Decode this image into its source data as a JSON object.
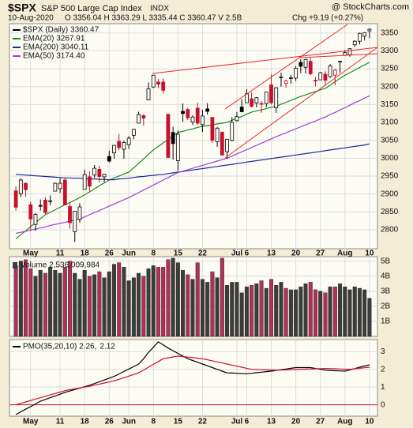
{
  "header": {
    "symbol": "$SPX",
    "name": "S&P 500 Large Cap Index",
    "exchange": "INDX",
    "credit": "@ StockCharts.com",
    "date": "10-Aug-2020",
    "quote": "O 3356.04 H 3363.29 L 3335.44 C 3360.47 V 2.5B",
    "change": "Chg +9.19 (+0.27%)"
  },
  "chart_data": [
    {
      "type": "candlestick",
      "name": "$SPX (Daily) 3360.47",
      "up_color": "#000000",
      "down_color": "#c8102e",
      "grid": true,
      "categories": [
        null,
        null,
        null,
        "May",
        null,
        null,
        null,
        null,
        null,
        "11",
        null,
        null,
        null,
        null,
        "18",
        null,
        null,
        null,
        null,
        "26",
        null,
        null,
        null,
        "Jun",
        null,
        null,
        null,
        null,
        "8",
        null,
        null,
        null,
        null,
        "15",
        null,
        null,
        null,
        null,
        "22",
        null,
        null,
        null,
        null,
        null,
        null,
        "Jul",
        null,
        "6",
        null,
        null,
        null,
        null,
        "13",
        null,
        null,
        null,
        null,
        "20",
        null,
        null,
        null,
        null,
        "27",
        null,
        null,
        null,
        null,
        "Aug",
        null,
        null,
        null,
        null,
        "10"
      ],
      "open": [
        2909,
        2901,
        2930,
        2870,
        2815,
        2868,
        2883,
        2879,
        2908,
        2915,
        2939,
        2865,
        2795,
        2829,
        2913,
        2948,
        2953,
        2969,
        2948,
        3005,
        3015,
        3047,
        3025,
        3038,
        3064,
        3098,
        3119,
        3163,
        3199,
        3213,
        3213,
        3123,
        3072,
        2993,
        3131,
        3136,
        3101,
        3140,
        3094,
        3138,
        3114,
        3046,
        3073,
        3018,
        3050,
        3105,
        3143,
        3155,
        3166,
        3154,
        3153,
        3153,
        3205,
        3141,
        3225,
        3209,
        3224,
        3224,
        3268,
        3254,
        3271,
        3218,
        3219,
        3235,
        3228,
        3232,
        3270,
        3288,
        3289,
        3317,
        3327,
        3341,
        3356.04
      ],
      "high": [
        2921,
        2944,
        2932,
        2878,
        2847,
        2885,
        2891,
        2896,
        2932,
        2944,
        2945,
        2874,
        2852,
        2874,
        2968,
        2964,
        2981,
        2979,
        2956,
        3021,
        3037,
        3068,
        3049,
        3062,
        3081,
        3130,
        3123,
        3212,
        3233,
        3222,
        3223,
        3123,
        3088,
        3078,
        3153,
        3141,
        3120,
        3155,
        3135,
        3154,
        3115,
        3087,
        3073,
        3054,
        3115,
        3129,
        3165,
        3193,
        3184,
        3171,
        3160,
        3186,
        3235,
        3198,
        3239,
        3220,
        3233,
        3258,
        3277,
        3278,
        3280,
        3227,
        3241,
        3243,
        3263,
        3250,
        3272,
        3302,
        3308,
        3330,
        3351,
        3352,
        3363.29
      ],
      "low": [
        2853,
        2891,
        2892,
        2797,
        2797,
        2854,
        2844,
        2869,
        2908,
        2903,
        2870,
        2803,
        2766,
        2820,
        2913,
        2908,
        2945,
        2933,
        2933,
        2988,
        2999,
        3022,
        2999,
        3026,
        3053,
        3098,
        3091,
        3163,
        3196,
        3196,
        3181,
        3002,
        2996,
        2965,
        3102,
        3107,
        3093,
        3092,
        3073,
        3122,
        3043,
        3032,
        3007,
        2999,
        3047,
        3102,
        3128,
        3155,
        3142,
        3142,
        3127,
        3143,
        3150,
        3127,
        3200,
        3197,
        3208,
        3216,
        3238,
        3237,
        3232,
        3201,
        3219,
        3206,
        3225,
        3204,
        3238,
        3286,
        3284,
        3311,
        3318,
        3329,
        3335.44
      ],
      "close": [
        2863,
        2939,
        2912,
        2830,
        2843,
        2868,
        2848,
        2881,
        2930,
        2930,
        2870,
        2820,
        2852,
        2864,
        2954,
        2922,
        2972,
        2949,
        2955,
        2992,
        3036,
        3030,
        3044,
        3056,
        3081,
        3122,
        3112,
        3194,
        3232,
        3207,
        3190,
        3002,
        3041,
        3067,
        3125,
        3113,
        3115,
        3098,
        3118,
        3131,
        3050,
        3084,
        3009,
        3053,
        3100,
        3116,
        3130,
        3180,
        3145,
        3169,
        3152,
        3185,
        3155,
        3197,
        3227,
        3216,
        3225,
        3251,
        3257,
        3276,
        3236,
        3216,
        3239,
        3218,
        3258,
        3246,
        3271,
        3295,
        3306,
        3327,
        3349,
        3351,
        3360.47
      ],
      "series": [
        {
          "name": "EMA(20) 3267.91",
          "color": "#1a8a1a",
          "values": [
            2775,
            2786,
            2797,
            2809,
            2820,
            2831,
            2842,
            2849,
            2856,
            2863,
            2870,
            2876,
            2883,
            2890,
            2898,
            2906,
            2914,
            2923,
            2931,
            2939,
            2945,
            2950,
            2956,
            2961,
            2973,
            2986,
            2998,
            3011,
            3023,
            3033,
            3043,
            3052,
            3062,
            3072,
            3075,
            3079,
            3082,
            3086,
            3089,
            3091,
            3093,
            3096,
            3098,
            3100,
            3106,
            3112,
            3117,
            3123,
            3129,
            3132,
            3135,
            3139,
            3142,
            3145,
            3151,
            3156,
            3162,
            3167,
            3173,
            3177,
            3182,
            3186,
            3191,
            3195,
            3204,
            3214,
            3223,
            3232,
            3239,
            3246,
            3254,
            3261,
            3267.91
          ]
        },
        {
          "name": "EMA(200) 3040.11",
          "color": "#1c2a9a",
          "values": [
            2955,
            2954,
            2953,
            2952,
            2951,
            2950,
            2949,
            2948,
            2947,
            2946,
            2945,
            2945,
            2944,
            2944,
            2943,
            2942,
            2942,
            2941,
            2941,
            2940,
            2940,
            2942,
            2943,
            2944,
            2946,
            2948,
            2949,
            2951,
            2952,
            2954,
            2955,
            2957,
            2959,
            2961,
            2963,
            2965,
            2967,
            2969,
            2971,
            2973,
            2975,
            2977,
            2979,
            2981,
            2983,
            2985,
            2987,
            2989,
            2991,
            2993,
            2995,
            2997,
            2999,
            3001,
            3003,
            3005,
            3007,
            3009,
            3011,
            3013,
            3015,
            3017,
            3019,
            3021,
            3023,
            3025,
            3027,
            3029,
            3031,
            3033,
            3035,
            3037,
            3040.11
          ]
        },
        {
          "name": "EMA(50) 3174.40",
          "color": "#9b3fd6",
          "values": [
            2790,
            2793,
            2796,
            2799,
            2802,
            2805,
            2808,
            2812,
            2815,
            2818,
            2821,
            2824,
            2827,
            2830,
            2836,
            2842,
            2848,
            2854,
            2860,
            2866,
            2872,
            2878,
            2884,
            2890,
            2897,
            2904,
            2911,
            2918,
            2925,
            2932,
            2939,
            2946,
            2953,
            2960,
            2964,
            2968,
            2972,
            2976,
            2980,
            2984,
            2988,
            2992,
            2996,
            3000,
            3006,
            3012,
            3018,
            3024,
            3030,
            3036,
            3042,
            3048,
            3054,
            3060,
            3066,
            3071,
            3077,
            3082,
            3088,
            3093,
            3099,
            3104,
            3110,
            3115,
            3122,
            3128,
            3135,
            3141,
            3148,
            3155,
            3161,
            3168,
            3174.4
          ]
        }
      ],
      "ylim": [
        2747,
        3376
      ],
      "yticks": [
        2800,
        2850,
        2900,
        2950,
        3000,
        3050,
        3100,
        3150,
        3200,
        3250,
        3300,
        3350
      ]
    },
    {
      "type": "bar",
      "name": "Volume 2,536,009,984",
      "up_color": "#3c3c3c",
      "down_color": "#b0305a",
      "grid": true,
      "values": [
        4.7,
        5.0,
        5.1,
        4.5,
        4.0,
        4.4,
        4.2,
        4.6,
        4.4,
        4.2,
        4.6,
        5.0,
        4.2,
        3.8,
        4.4,
        4.0,
        4.1,
        4.3,
        3.9,
        4.3,
        4.8,
        4.9,
        4.6,
        3.7,
        3.9,
        4.2,
        4.0,
        4.5,
        4.7,
        4.6,
        4.6,
        5.1,
        5.2,
        4.9,
        4.4,
        4.1,
        3.8,
        4.9,
        3.8,
        3.6,
        4.3,
        3.9,
        5.2,
        3.4,
        3.6,
        3.6,
        2.9,
        3.3,
        3.4,
        3.5,
        3.7,
        3.2,
        3.8,
        3.4,
        3.6,
        3.2,
        3.1,
        3.1,
        3.3,
        3.5,
        3.6,
        3.1,
        3.0,
        2.9,
        3.3,
        3.3,
        3.5,
        3.3,
        3.1,
        3.3,
        3.2,
        3.1,
        2.536009984
      ],
      "ylim": [
        0,
        5.3
      ],
      "yticks": [
        {
          "value": 1,
          "label": "1B"
        },
        {
          "value": 2,
          "label": "2B"
        },
        {
          "value": 3,
          "label": "3B"
        },
        {
          "value": 4,
          "label": "4B"
        },
        {
          "value": 5,
          "label": "5B"
        }
      ]
    },
    {
      "type": "line",
      "grid": true,
      "zero_color": "#c8102e",
      "categories": [
        null,
        null,
        null,
        "May",
        null,
        null,
        null,
        null,
        null,
        "11",
        null,
        null,
        null,
        null,
        "18",
        null,
        null,
        null,
        null,
        "26",
        null,
        null,
        null,
        "Jun",
        null,
        null,
        null,
        null,
        "8",
        null,
        null,
        null,
        null,
        "15",
        null,
        null,
        null,
        null,
        "22",
        null,
        null,
        null,
        null,
        null,
        null,
        "Jul",
        null,
        "6",
        null,
        null,
        null,
        null,
        "13",
        null,
        null,
        null,
        null,
        "20",
        null,
        null,
        null,
        null,
        "27",
        null,
        null,
        null,
        null,
        "Aug",
        null,
        null,
        null,
        null,
        "10"
      ],
      "series": [
        {
          "name": "PMO(35,20,10) 2.26,",
          "color": "#000000",
          "values": [
            -0.55,
            -0.4,
            -0.25,
            -0.1,
            0.05,
            0.2,
            0.3,
            0.4,
            0.5,
            0.6,
            0.7,
            0.78,
            0.86,
            0.94,
            1.02,
            1.1,
            1.2,
            1.3,
            1.4,
            1.5,
            1.6,
            1.74,
            1.88,
            2.02,
            2.16,
            2.3,
            2.6,
            2.95,
            3.25,
            3.55,
            3.38,
            3.2,
            3.05,
            2.9,
            2.75,
            2.6,
            2.5,
            2.4,
            2.3,
            2.2,
            2.1,
            2.0,
            1.9,
            1.8,
            1.79,
            1.78,
            1.76,
            1.75,
            1.78,
            1.81,
            1.84,
            1.87,
            1.9,
            1.94,
            1.98,
            2.02,
            2.06,
            2.1,
            2.1,
            2.1,
            2.1,
            2.05,
            2.0,
            1.95,
            1.94,
            1.92,
            1.91,
            1.9,
            1.97,
            2.04,
            2.12,
            2.19,
            2.26
          ]
        },
        {
          "name": "2.12",
          "color": "#c8102e",
          "values": [
            0,
            0.08,
            0.16,
            0.24,
            0.32,
            0.4,
            0.48,
            0.56,
            0.64,
            0.72,
            0.8,
            0.85,
            0.9,
            0.95,
            1.0,
            1.05,
            1.11,
            1.17,
            1.23,
            1.29,
            1.35,
            1.44,
            1.53,
            1.62,
            1.71,
            1.8,
            1.96,
            2.12,
            2.28,
            2.44,
            2.6,
            2.65,
            2.7,
            2.75,
            2.72,
            2.69,
            2.66,
            2.63,
            2.6,
            2.54,
            2.48,
            2.42,
            2.36,
            2.3,
            2.24,
            2.18,
            2.12,
            2.06,
            2.0,
            1.99,
            1.98,
            1.97,
            1.96,
            1.95,
            1.96,
            1.97,
            1.98,
            1.99,
            2.0,
            2.01,
            2.02,
            2.03,
            2.04,
            2.05,
            2.04,
            2.03,
            2.02,
            2.01,
            2.0,
            2.03,
            2.06,
            2.09,
            2.12
          ]
        }
      ],
      "ylim": [
        -0.64,
        3.68
      ],
      "yticks": [
        0,
        1,
        2,
        3
      ]
    }
  ]
}
